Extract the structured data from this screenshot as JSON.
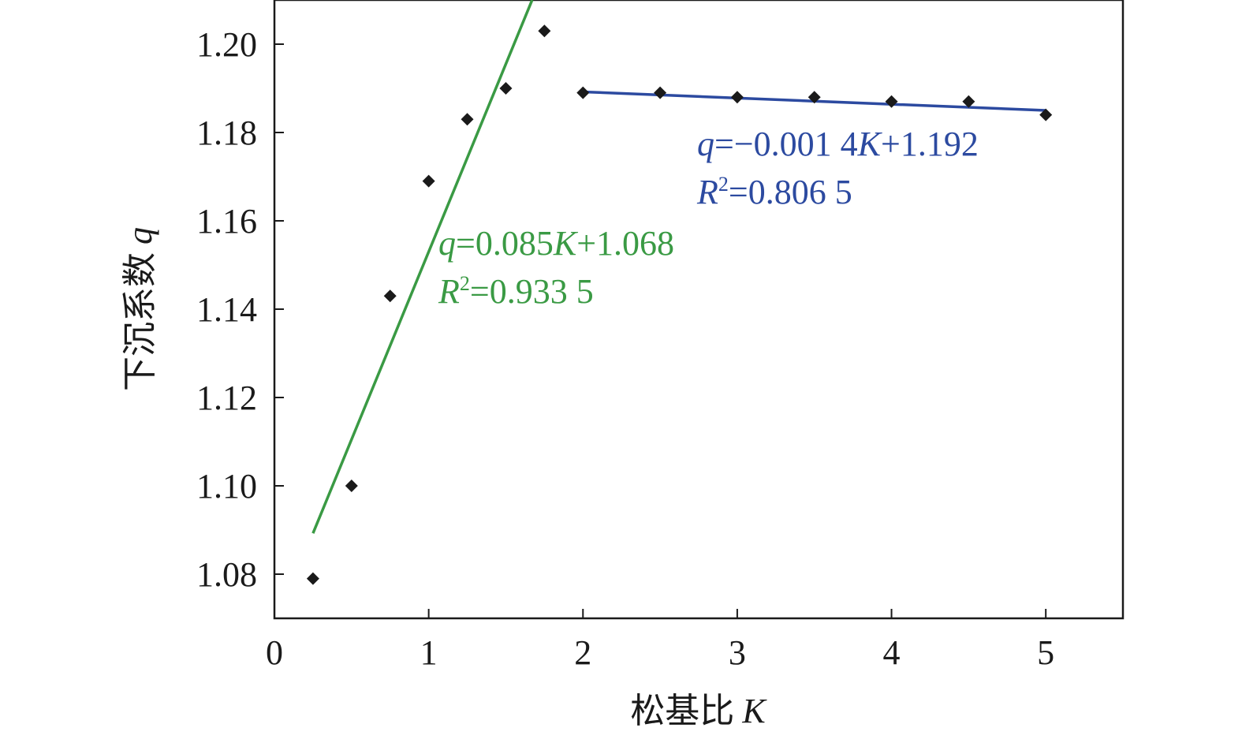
{
  "chart_data": {
    "type": "scatter",
    "xlabel": "松基比",
    "xlabel_var": "K",
    "ylabel": "下沉系数",
    "ylabel_var": "q",
    "xlim": [
      0,
      5.5
    ],
    "ylim": [
      1.07,
      1.21
    ],
    "xticks": [
      0,
      1,
      2,
      3,
      4,
      5
    ],
    "xtick_labels": [
      "0",
      "1",
      "2",
      "3",
      "4",
      "5"
    ],
    "yticks": [
      1.08,
      1.1,
      1.12,
      1.14,
      1.16,
      1.18,
      1.2
    ],
    "ytick_labels": [
      "1.08",
      "1.10",
      "1.12",
      "1.14",
      "1.16",
      "1.18",
      "1.20"
    ],
    "points": {
      "x": [
        0.25,
        0.5,
        0.75,
        1.0,
        1.25,
        1.5,
        1.75,
        2.0,
        2.5,
        3.0,
        3.5,
        4.0,
        4.5,
        5.0
      ],
      "y": [
        1.079,
        1.1,
        1.143,
        1.169,
        1.183,
        1.19,
        1.203,
        1.189,
        1.189,
        1.188,
        1.188,
        1.187,
        1.187,
        1.184
      ]
    },
    "fits": [
      {
        "slope": 0.085,
        "intercept": 1.068,
        "x_range": [
          0.25,
          1.75
        ],
        "color": "#3a9a44",
        "equation": {
          "lhs": "q",
          "eq1": "=0.085",
          "var": "K",
          "eq2": "+1.068"
        },
        "r2": {
          "sym": "R",
          "sup": "2",
          "val": "=0.933 5"
        }
      },
      {
        "slope": -0.0014,
        "intercept": 1.192,
        "x_range": [
          2.0,
          5.0
        ],
        "color": "#2c4aa0",
        "equation": {
          "lhs": "q",
          "eq1": "=−0.001 4",
          "var": "K",
          "eq2": "+1.192"
        },
        "r2": {
          "sym": "R",
          "sup": "2",
          "val": "=0.806 5"
        }
      }
    ],
    "marker_color": "#1a1a1a",
    "grid": false
  }
}
